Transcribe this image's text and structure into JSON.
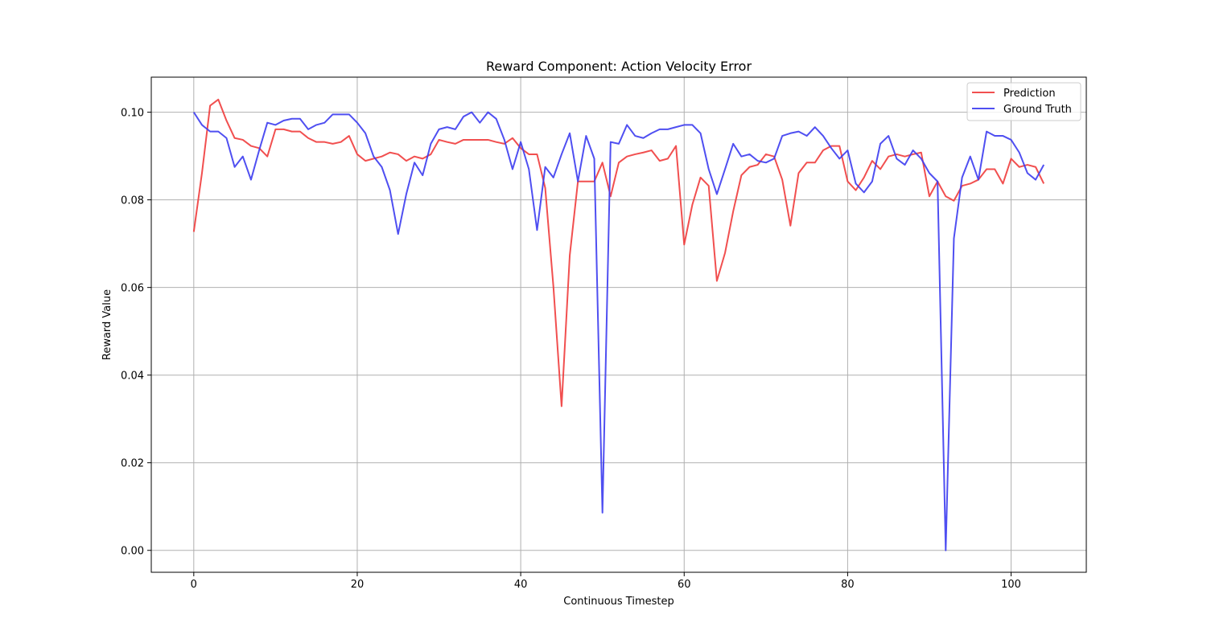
{
  "chart_data": {
    "type": "line",
    "title": "Reward Component: Action Velocity Error",
    "xlabel": "Continuous Timestep",
    "ylabel": "Reward Value",
    "xlim": [
      -5.2,
      109.2
    ],
    "ylim": [
      -0.005,
      0.108
    ],
    "xticks": [
      0,
      20,
      40,
      60,
      80,
      100
    ],
    "yticks": [
      0.0,
      0.02,
      0.04,
      0.06,
      0.08,
      0.1
    ],
    "xtick_labels": [
      "0",
      "20",
      "40",
      "60",
      "80",
      "100"
    ],
    "ytick_labels": [
      "0.00",
      "0.02",
      "0.04",
      "0.06",
      "0.08",
      "0.10"
    ],
    "grid": true,
    "legend_position": "top-right",
    "series": [
      {
        "name": "Prediction",
        "color": "#f03c3c",
        "values": [
          0.0727,
          0.0861,
          0.1015,
          0.1029,
          0.0981,
          0.0941,
          0.0937,
          0.0923,
          0.0918,
          0.0899,
          0.0961,
          0.0961,
          0.0956,
          0.0956,
          0.0941,
          0.0932,
          0.0932,
          0.0928,
          0.0932,
          0.0946,
          0.0904,
          0.0889,
          0.0894,
          0.0899,
          0.0908,
          0.0904,
          0.0889,
          0.0899,
          0.0894,
          0.0904,
          0.0937,
          0.0932,
          0.0928,
          0.0937,
          0.0937,
          0.0937,
          0.0937,
          0.0932,
          0.0928,
          0.0941,
          0.0918,
          0.0904,
          0.0904,
          0.0827,
          0.0602,
          0.0329,
          0.0673,
          0.0842,
          0.0842,
          0.0842,
          0.0885,
          0.0808,
          0.0885,
          0.0899,
          0.0904,
          0.0908,
          0.0913,
          0.0889,
          0.0894,
          0.0923,
          0.0698,
          0.0789,
          0.0851,
          0.0832,
          0.0615,
          0.0679,
          0.0774,
          0.0856,
          0.0875,
          0.088,
          0.0904,
          0.0899,
          0.0846,
          0.0741,
          0.0861,
          0.0885,
          0.0885,
          0.0913,
          0.0923,
          0.0923,
          0.0842,
          0.0822,
          0.0851,
          0.0889,
          0.087,
          0.0899,
          0.0904,
          0.0899,
          0.0904,
          0.0908,
          0.0808,
          0.0842,
          0.0808,
          0.0798,
          0.0832,
          0.0837,
          0.0846,
          0.087,
          0.087,
          0.0837,
          0.0894,
          0.0875,
          0.088,
          0.0875,
          0.0837
        ]
      },
      {
        "name": "Ground Truth",
        "color": "#3c3cf0",
        "values": [
          0.1,
          0.0971,
          0.0956,
          0.0956,
          0.0941,
          0.0875,
          0.0899,
          0.0846,
          0.0913,
          0.0976,
          0.0971,
          0.0981,
          0.0985,
          0.0985,
          0.0961,
          0.0971,
          0.0976,
          0.0995,
          0.0995,
          0.0995,
          0.0976,
          0.0952,
          0.0899,
          0.0875,
          0.0822,
          0.0722,
          0.0813,
          0.0885,
          0.0856,
          0.0928,
          0.0961,
          0.0966,
          0.0961,
          0.099,
          0.1,
          0.0976,
          0.1,
          0.0985,
          0.0937,
          0.087,
          0.0932,
          0.087,
          0.0731,
          0.0875,
          0.0851,
          0.0904,
          0.0952,
          0.0842,
          0.0946,
          0.0894,
          0.0086,
          0.0932,
          0.0928,
          0.0971,
          0.0946,
          0.0941,
          0.0952,
          0.0961,
          0.0961,
          0.0966,
          0.0971,
          0.0971,
          0.0952,
          0.087,
          0.0813,
          0.087,
          0.0928,
          0.0899,
          0.0904,
          0.0889,
          0.0885,
          0.0894,
          0.0946,
          0.0952,
          0.0956,
          0.0946,
          0.0966,
          0.0946,
          0.0918,
          0.0894,
          0.0913,
          0.0837,
          0.0817,
          0.0842,
          0.0928,
          0.0946,
          0.0894,
          0.088,
          0.0913,
          0.0894,
          0.0861,
          0.0842,
          0.0,
          0.0712,
          0.0851,
          0.0899,
          0.0846,
          0.0956,
          0.0946,
          0.0946,
          0.0937,
          0.0908,
          0.0861,
          0.0846,
          0.088
        ]
      }
    ]
  }
}
